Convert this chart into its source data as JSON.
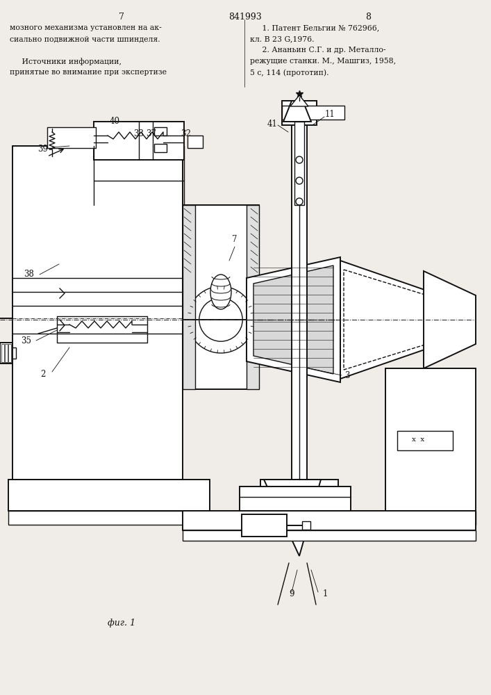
{
  "page_number_left": "7",
  "page_number_center": "841993",
  "page_number_right": "8",
  "text_left": [
    "мозного механизма установлен на ак-",
    "сиально подвижной части шпинделя.",
    "",
    "     Источники информации,",
    "принятые во внимание при экспертизе"
  ],
  "text_right": [
    "     1. Патент Бельгии № 762966,",
    "кл. В 23 G,1976.",
    "     2. Ананьин С.Г. и др. Металло-",
    "режущие станки. М., Машгиз, 1958,",
    "5 с, 114 (прототип)."
  ],
  "fig_label": "фиг. 1",
  "bg": "#f0ede8",
  "lc": "#111111"
}
